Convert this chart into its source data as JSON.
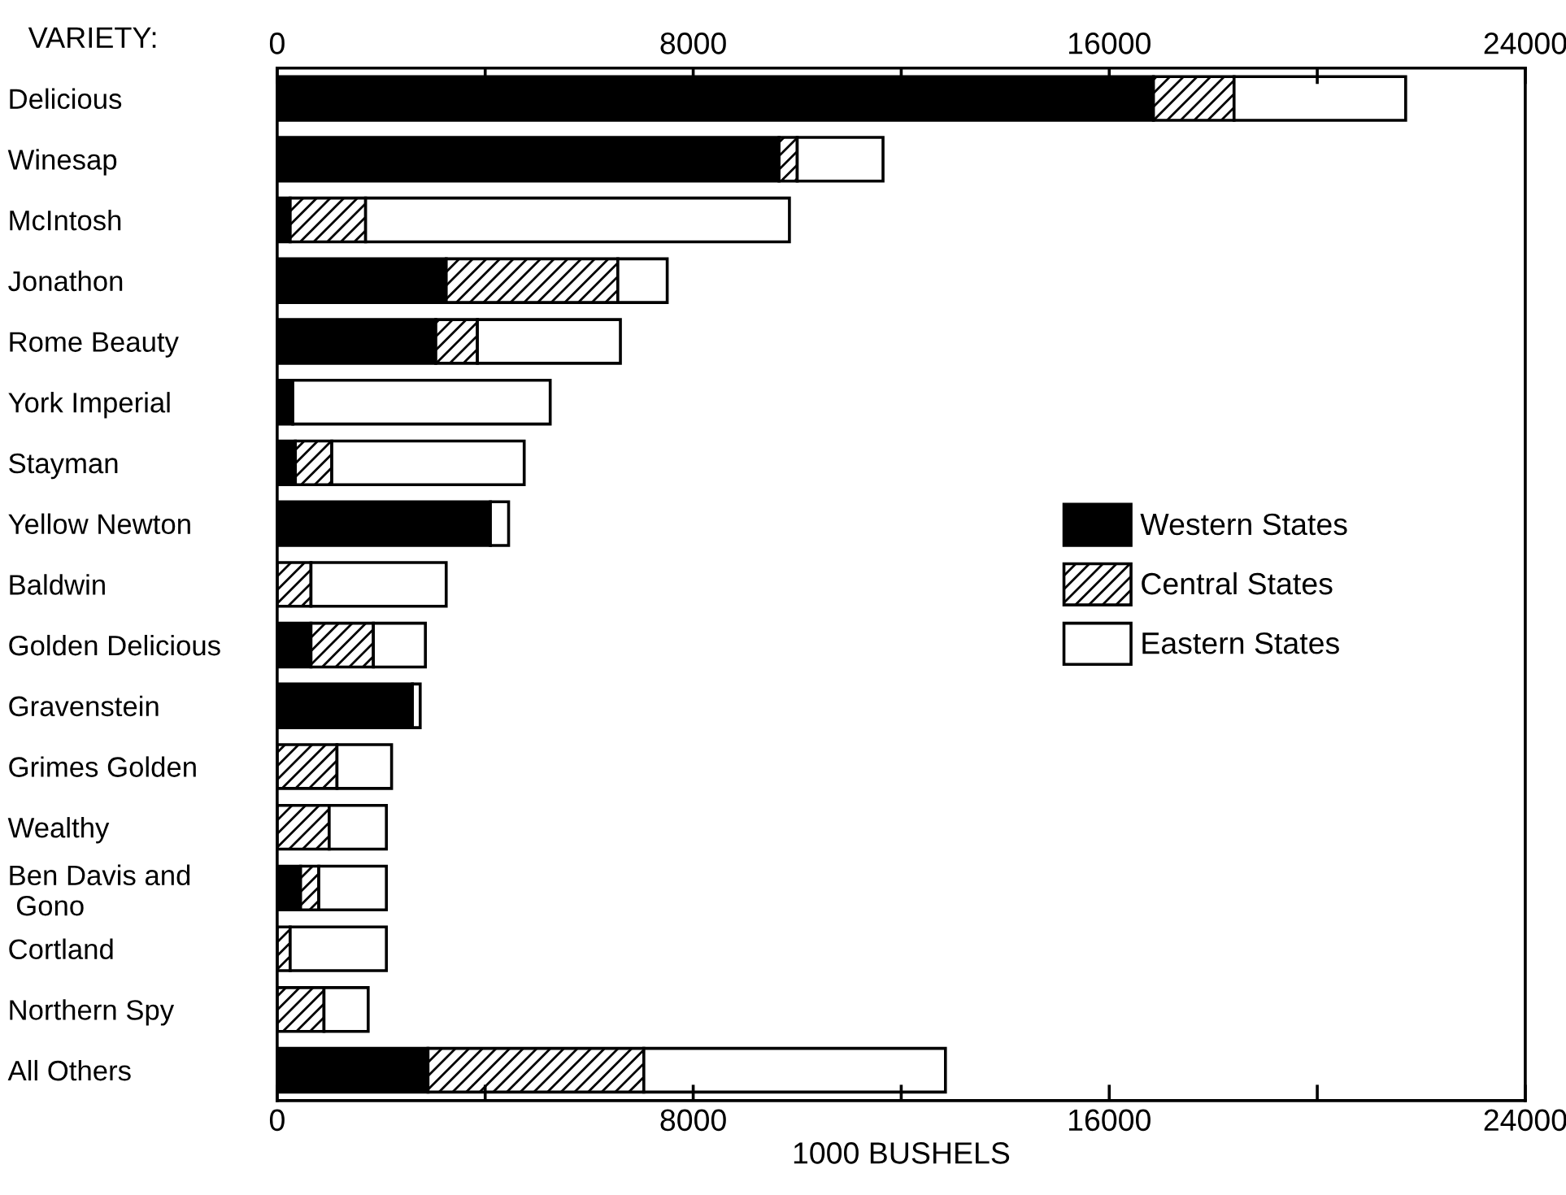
{
  "chart_data": {
    "type": "bar",
    "orientation": "horizontal",
    "stacked": true,
    "xlabel": "1000 BUSHELS",
    "annotations": [
      "VARIETY:"
    ],
    "categories": [
      "Delicious",
      "Winesap",
      "McIntosh",
      "Jonathon",
      "Rome Beauty",
      "York Imperial",
      "Stayman",
      "Yellow Newton",
      "Baldwin",
      "Golden Delicious",
      "Gravenstein",
      "Grimes Golden",
      "Wealthy",
      "Ben Davis and\n Gono",
      "Cortland",
      "Northern Spy",
      "All Others"
    ],
    "series": [
      {
        "name": "Western States",
        "color": "#000000",
        "values": [
          16850,
          9650,
          250,
          3250,
          3050,
          300,
          350,
          4100,
          0,
          650,
          2600,
          0,
          0,
          450,
          0,
          0,
          2900
        ]
      },
      {
        "name": "Central States",
        "color": "#ffffff",
        "values": [
          1550,
          350,
          1450,
          3300,
          800,
          0,
          700,
          0,
          650,
          1200,
          0,
          1150,
          1000,
          350,
          250,
          900,
          4150
        ]
      },
      {
        "name": "Eastern States",
        "color": "#ffffff",
        "values": [
          3300,
          1650,
          8150,
          950,
          2750,
          4950,
          3700,
          350,
          2600,
          1000,
          150,
          1050,
          1100,
          1300,
          1850,
          850,
          5800
        ]
      }
    ],
    "xlim": [
      0,
      24000
    ],
    "xticks": [
      0,
      {
        "value": 4000,
        "label": null
      },
      8000,
      {
        "value": 12000,
        "label": null
      },
      16000,
      {
        "value": 20000,
        "label": null
      },
      24000
    ],
    "x2lim": [
      0,
      24000
    ],
    "x2ticks": [
      0,
      {
        "value": 4000,
        "label": null
      },
      8000,
      {
        "value": 12000,
        "label": null
      },
      16000,
      {
        "value": 20000,
        "label": null
      },
      24000
    ],
    "legend": "right",
    "grid": false
  }
}
